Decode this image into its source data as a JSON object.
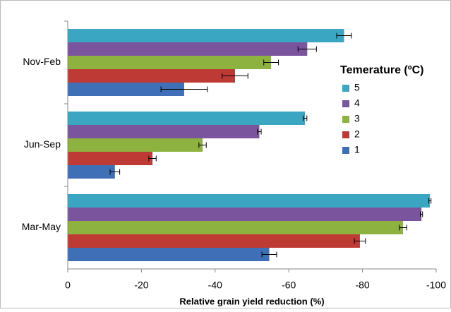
{
  "chart_data": {
    "type": "hbar",
    "x_label": "Relative grain yield reduction (%)",
    "categories": [
      "Mar-May",
      "Jun-Sep",
      "Nov-Feb"
    ],
    "series": [
      {
        "name": "1",
        "color": "#3f70b7",
        "values": [
          -54.7,
          -12.8,
          -31.6
        ],
        "errors": [
          2,
          1.3,
          6.3
        ]
      },
      {
        "name": "2",
        "color": "#be3a34",
        "values": [
          -79.3,
          -23,
          -45.4
        ],
        "errors": [
          1.5,
          1,
          3.5
        ]
      },
      {
        "name": "3",
        "color": "#8db23f",
        "values": [
          -91,
          -36.6,
          -55.2
        ],
        "errors": [
          1,
          1,
          2
        ]
      },
      {
        "name": "4",
        "color": "#7a559d",
        "values": [
          -96,
          -52,
          -65
        ],
        "errors": [
          0.3,
          0.5,
          2.5
        ]
      },
      {
        "name": "5",
        "color": "#3aa6c2",
        "values": [
          -98.3,
          -64.4,
          -75
        ],
        "errors": [
          0.3,
          0.5,
          2
        ]
      }
    ],
    "legend_title": "Temerature (ºC)",
    "xlim": [
      0,
      -100
    ],
    "xticks": [
      0,
      -20,
      -40,
      -60,
      -80,
      -100
    ]
  }
}
